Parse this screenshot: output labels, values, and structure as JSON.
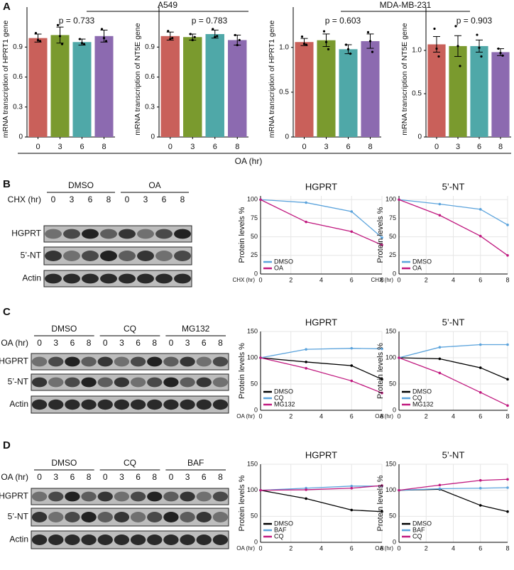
{
  "panels": [
    "A",
    "B",
    "C",
    "D"
  ],
  "panel_a": {
    "groups": [
      "A549",
      "MDA-MB-231"
    ],
    "xlabel": "OA (hr)"
  },
  "chart_data": [
    {
      "type": "bar",
      "ylabel": "mRNA transcription of HPRT1 gene",
      "annotation": "p = 0.733",
      "categories": [
        "0",
        "3",
        "6",
        "8"
      ],
      "values": [
        0.99,
        1.02,
        0.95,
        1.01
      ],
      "errors": [
        0.04,
        0.08,
        0.03,
        0.06
      ],
      "replicates": [
        [
          1.04,
          0.97,
          0.96
        ],
        [
          1.12,
          1.01,
          0.93
        ],
        [
          0.98,
          0.94,
          0.93
        ],
        [
          1.08,
          0.99,
          0.96
        ]
      ],
      "colors": [
        "#c9605a",
        "#7a9a2e",
        "#4fa8a8",
        "#8c6ab0"
      ],
      "ylim": [
        0,
        1.3
      ],
      "yticks": [
        0,
        0.3,
        0.6,
        0.9
      ]
    },
    {
      "type": "bar",
      "ylabel": "mRNA transcription of NT5E gene",
      "annotation": "p = 0.783",
      "categories": [
        "0",
        "3",
        "6",
        "8"
      ],
      "values": [
        1.01,
        1.0,
        1.03,
        0.97
      ],
      "errors": [
        0.04,
        0.03,
        0.04,
        0.05
      ],
      "replicates": [
        [
          1.06,
          0.98,
          0.99
        ],
        [
          1.03,
          0.97,
          1.0
        ],
        [
          1.08,
          1.0,
          1.01
        ],
        [
          1.02,
          0.92,
          0.97
        ]
      ],
      "colors": [
        "#c9605a",
        "#7a9a2e",
        "#4fa8a8",
        "#8c6ab0"
      ],
      "ylim": [
        0,
        1.3
      ],
      "yticks": [
        0,
        0.3,
        0.6,
        0.9
      ]
    },
    {
      "type": "bar",
      "ylabel": "mRNA transcription of HPRT1 gene",
      "annotation": "p = 0.603",
      "categories": [
        "0",
        "3",
        "6",
        "8"
      ],
      "values": [
        1.06,
        1.08,
        0.98,
        1.07
      ],
      "errors": [
        0.04,
        0.07,
        0.05,
        0.08
      ],
      "replicates": [
        [
          1.12,
          1.04,
          1.03
        ],
        [
          1.18,
          1.06,
          0.98
        ],
        [
          1.03,
          0.98,
          0.93
        ],
        [
          1.17,
          1.07,
          0.95
        ]
      ],
      "colors": [
        "#c9605a",
        "#7a9a2e",
        "#4fa8a8",
        "#8c6ab0"
      ],
      "ylim": [
        0,
        1.45
      ],
      "yticks": [
        0,
        0.5,
        {
          "value": 1,
          "label": "1.0"
        }
      ]
    },
    {
      "type": "bar",
      "ylabel": "mRNA transcription of NT5E gene",
      "annotation": "p = 0.903",
      "categories": [
        "0",
        "3",
        "6",
        "8"
      ],
      "values": [
        1.07,
        1.05,
        1.05,
        0.98
      ],
      "errors": [
        0.09,
        0.12,
        0.07,
        0.04
      ],
      "replicates": [
        [
          1.25,
          1.02,
          0.93
        ],
        [
          1.28,
          1.05,
          0.82
        ],
        [
          1.18,
          1.03,
          0.93
        ],
        [
          1.02,
          0.97,
          0.94
        ]
      ],
      "colors": [
        "#c9605a",
        "#7a9a2e",
        "#4fa8a8",
        "#8c6ab0"
      ],
      "ylim": [
        0,
        1.5
      ],
      "yticks": [
        0,
        0.5,
        {
          "value": 1,
          "label": "1.0"
        }
      ]
    },
    {
      "type": "line",
      "title": "HGPRT",
      "ylabel": "Protein levels %",
      "xlabel": "CHX (hr)",
      "x": [
        0,
        3,
        6,
        8
      ],
      "series": [
        {
          "name": "DMSO",
          "color": "#5ba3dc",
          "values": [
            100,
            96,
            84,
            49
          ]
        },
        {
          "name": "OA",
          "color": "#c0197f",
          "values": [
            100,
            70,
            57,
            39
          ]
        }
      ],
      "xlim": [
        0,
        8
      ],
      "xticks": [
        0,
        2,
        4,
        6,
        8
      ],
      "ylim": [
        0,
        105
      ],
      "yticks": [
        0,
        25,
        50,
        75,
        100
      ],
      "grid": true,
      "legend": "lower left"
    },
    {
      "type": "line",
      "title": "5’-NT",
      "ylabel": "Protein levels %",
      "xlabel": "CHX (hr)",
      "x": [
        0,
        3,
        6,
        8
      ],
      "series": [
        {
          "name": "DMSO",
          "color": "#5ba3dc",
          "values": [
            100,
            94,
            87,
            66
          ]
        },
        {
          "name": "OA",
          "color": "#c0197f",
          "values": [
            100,
            79,
            51,
            25
          ]
        }
      ],
      "xlim": [
        0,
        8
      ],
      "xticks": [
        0,
        2,
        4,
        6,
        8
      ],
      "ylim": [
        0,
        105
      ],
      "yticks": [
        0,
        25,
        50,
        75,
        100
      ],
      "grid": true,
      "legend": "lower left"
    },
    {
      "type": "line",
      "title": "HGPRT",
      "ylabel": "Protein levels %",
      "xlabel": "OA (hr)",
      "x": [
        0,
        3,
        6,
        8
      ],
      "series": [
        {
          "name": "DMSO",
          "color": "#000000",
          "values": [
            100,
            92,
            85,
            59
          ]
        },
        {
          "name": "CQ",
          "color": "#5ba3dc",
          "values": [
            100,
            116,
            118,
            117
          ]
        },
        {
          "name": "MG132",
          "color": "#c0197f",
          "values": [
            100,
            80,
            56,
            33
          ]
        }
      ],
      "xlim": [
        0,
        8
      ],
      "xticks": [
        0,
        2,
        4,
        6,
        8
      ],
      "ylim": [
        0,
        150
      ],
      "yticks": [
        0,
        50,
        100,
        150
      ],
      "grid": true,
      "legend": "lower left"
    },
    {
      "type": "line",
      "title": "5’-NT",
      "ylabel": "Protein levels %",
      "xlabel": "OA (hr)",
      "x": [
        0,
        3,
        6,
        8
      ],
      "series": [
        {
          "name": "DMSO",
          "color": "#000000",
          "values": [
            100,
            98,
            81,
            59
          ]
        },
        {
          "name": "CQ",
          "color": "#5ba3dc",
          "values": [
            100,
            120,
            125,
            125
          ]
        },
        {
          "name": "MG132",
          "color": "#c0197f",
          "values": [
            100,
            71,
            34,
            9
          ]
        }
      ],
      "xlim": [
        0,
        8
      ],
      "xticks": [
        0,
        2,
        4,
        6,
        8
      ],
      "ylim": [
        0,
        150
      ],
      "yticks": [
        0,
        50,
        100,
        150
      ],
      "grid": true,
      "legend": "lower left"
    },
    {
      "type": "line",
      "title": "HGPRT",
      "ylabel": "Protein levels %",
      "xlabel": "OA (hr)",
      "x": [
        0,
        3,
        6,
        8
      ],
      "series": [
        {
          "name": "DMSO",
          "color": "#000000",
          "values": [
            100,
            84,
            62,
            59
          ]
        },
        {
          "name": "BAF",
          "color": "#5ba3dc",
          "values": [
            100,
            104,
            108,
            108
          ]
        },
        {
          "name": "CQ",
          "color": "#c0197f",
          "values": [
            100,
            101,
            104,
            109
          ]
        }
      ],
      "xlim": [
        0,
        8
      ],
      "xticks": [
        0,
        2,
        4,
        6,
        8
      ],
      "ylim": [
        0,
        150
      ],
      "yticks": [
        0,
        50,
        100,
        150
      ],
      "grid": true,
      "legend": "lower left"
    },
    {
      "type": "line",
      "title": "5’-NT",
      "ylabel": "Protein levels %",
      "xlabel": "OA (hr)",
      "x": [
        0,
        3,
        6,
        8
      ],
      "series": [
        {
          "name": "DMSO",
          "color": "#000000",
          "values": [
            100,
            102,
            71,
            59
          ]
        },
        {
          "name": "BAF",
          "color": "#5ba3dc",
          "values": [
            100,
            103,
            104,
            105
          ]
        },
        {
          "name": "CQ",
          "color": "#c0197f",
          "values": [
            100,
            110,
            119,
            121
          ]
        }
      ],
      "xlim": [
        0,
        8
      ],
      "xticks": [
        0,
        2,
        4,
        6,
        8
      ],
      "ylim": [
        0,
        150
      ],
      "yticks": [
        0,
        50,
        100,
        150
      ],
      "grid": true,
      "legend": "lower left"
    }
  ],
  "blots": [
    {
      "conditions": [
        "DMSO",
        "OA"
      ],
      "time_label": "CHX (hr)",
      "lanes": [
        "0",
        "3",
        "6",
        "8"
      ],
      "rows": [
        "HGPRT",
        "5’-NT",
        "Actin"
      ]
    },
    {
      "conditions": [
        "DMSO",
        "CQ",
        "MG132"
      ],
      "time_label": "OA (hr)",
      "lanes": [
        "0",
        "3",
        "6",
        "8"
      ],
      "rows": [
        "HGPRT",
        "5’-NT",
        "Actin"
      ]
    },
    {
      "conditions": [
        "DMSO",
        "CQ",
        "BAF"
      ],
      "time_label": "OA (hr)",
      "lanes": [
        "0",
        "3",
        "6",
        "8"
      ],
      "rows": [
        "HGPRT",
        "5’-NT",
        "Actin"
      ]
    }
  ]
}
